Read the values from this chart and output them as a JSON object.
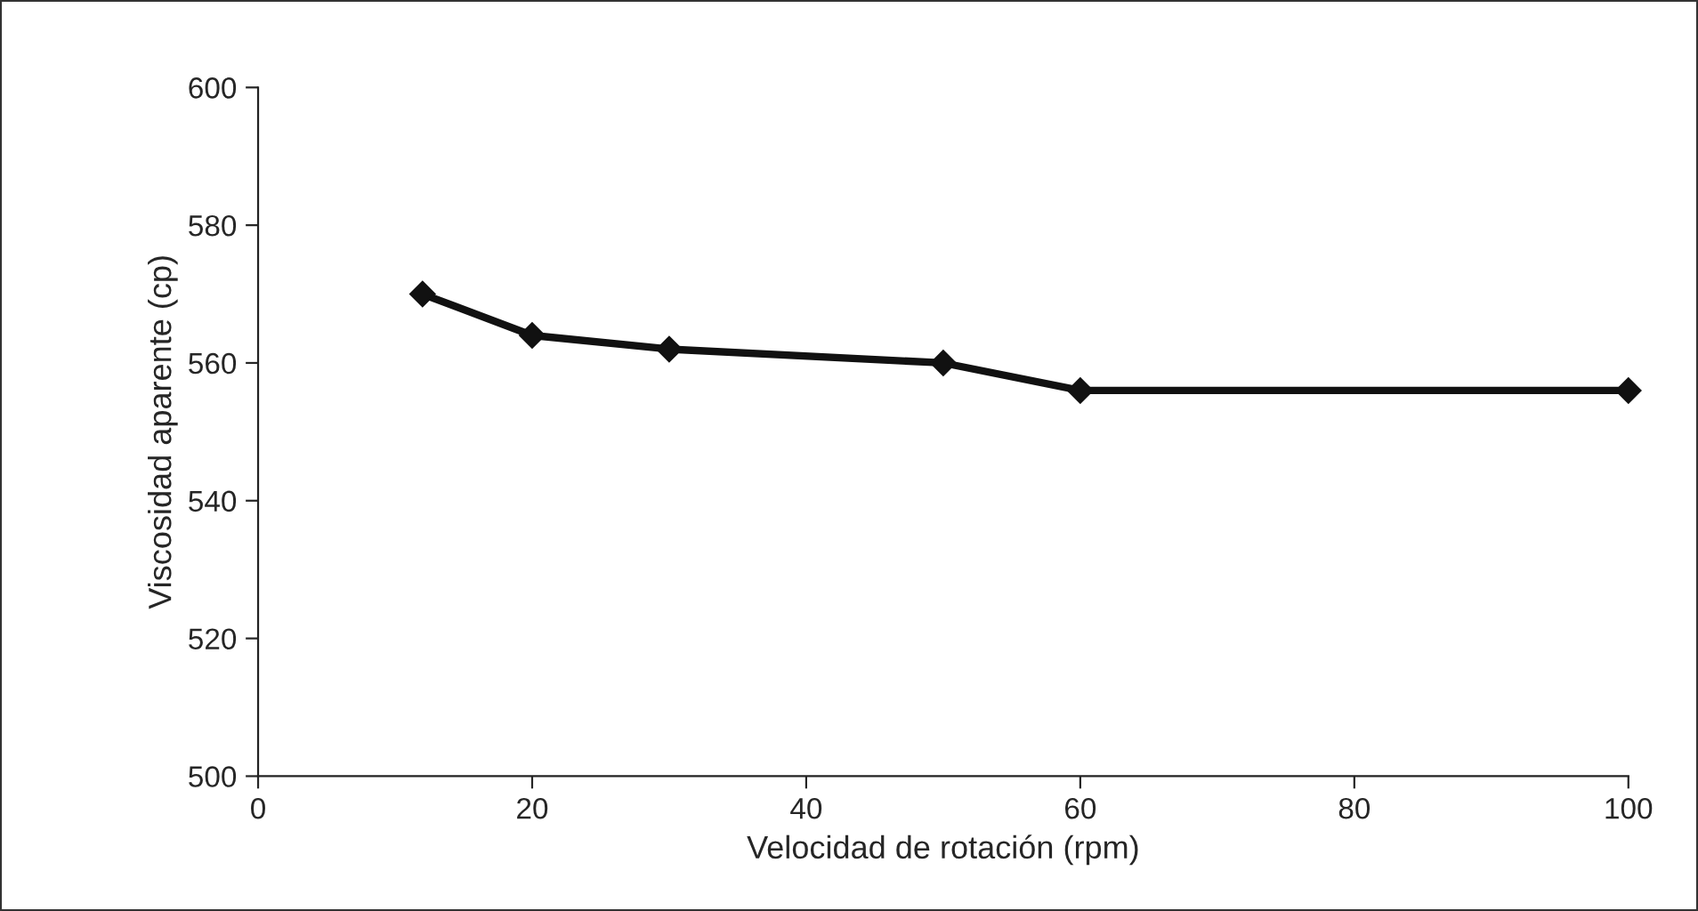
{
  "chart_data": {
    "type": "line",
    "xlabel": "Velocidad de rotación (rpm)",
    "ylabel": "Viscosidad aparente (cp)",
    "x": [
      12,
      20,
      30,
      50,
      60,
      100
    ],
    "series": [
      {
        "color": "#111111",
        "values": [
          570,
          564,
          562,
          560,
          556,
          556
        ]
      }
    ],
    "xlim": [
      0,
      100
    ],
    "xticks": [
      0,
      20,
      40,
      60,
      80,
      100
    ],
    "ylim": [
      500,
      600
    ],
    "yticks": [
      500,
      520,
      540,
      560,
      580,
      600
    ],
    "marker": "diamond",
    "line_style": "solid",
    "grid": false
  }
}
